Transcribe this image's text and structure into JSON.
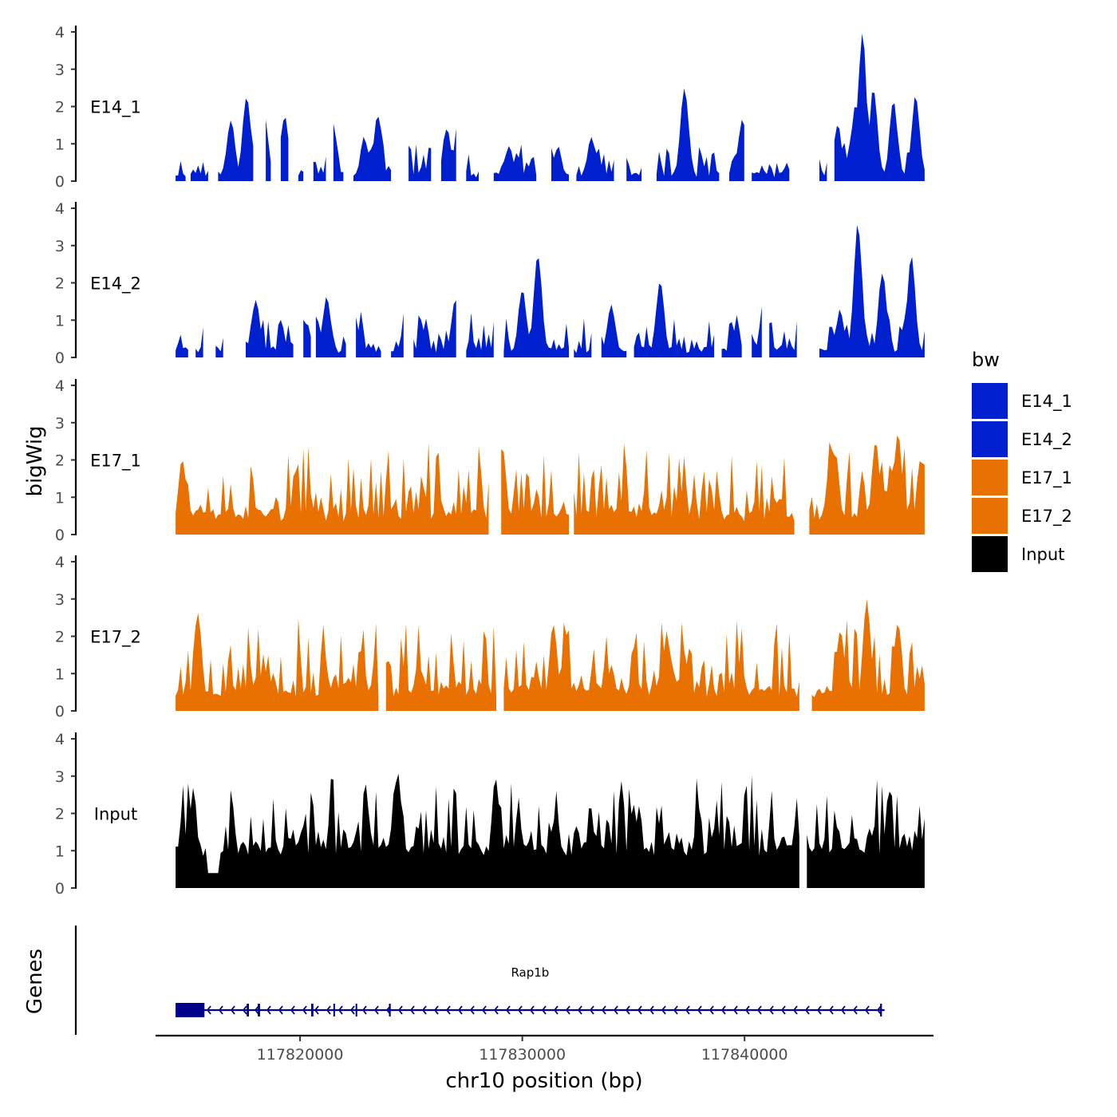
{
  "chart_data": {
    "type": "area",
    "chromosome": "chr10",
    "x_range": [
      117813500,
      117848500
    ],
    "xlabel": "chr10 position (bp)",
    "x_ticks": [
      117820000,
      117830000,
      117840000
    ],
    "x_tick_labels": [
      "117820000",
      "117830000",
      "117840000"
    ],
    "ylabel": "bigWig",
    "ylim": [
      0,
      4
    ],
    "y_ticks": [
      0,
      1,
      2,
      3,
      4
    ],
    "y_tick_labels": [
      "0",
      "1",
      "2",
      "3",
      "4"
    ],
    "data_start": 117814400,
    "data_end": 117848100,
    "n_bins": 300,
    "legend": {
      "title": "bw",
      "position": "right",
      "entries": [
        {
          "label": "E14_1",
          "color": "#0020cf"
        },
        {
          "label": "E14_2",
          "color": "#0020cf"
        },
        {
          "label": "E17_1",
          "color": "#e87102"
        },
        {
          "label": "E17_2",
          "color": "#e87102"
        },
        {
          "label": "Input",
          "color": "#000000"
        }
      ]
    },
    "series": [
      {
        "name": "E14_1",
        "color": "#0020cf",
        "baseline": 0.1,
        "noise": 0.4,
        "seed": 11,
        "gaps": [
          [
            117814900,
            117815000
          ],
          [
            117815900,
            117816300
          ],
          [
            117817900,
            117818400
          ],
          [
            117818700,
            117819100
          ],
          [
            117819500,
            117819900
          ],
          [
            117820200,
            117820500
          ],
          [
            117821200,
            117821500
          ],
          [
            117822000,
            117822300
          ],
          [
            117824100,
            117824800
          ],
          [
            117826000,
            117826300
          ],
          [
            117827100,
            117827400
          ],
          [
            117828100,
            117828700
          ],
          [
            117830700,
            117831300
          ],
          [
            117832100,
            117832400
          ],
          [
            117834200,
            117834600
          ],
          [
            117835400,
            117835600
          ],
          [
            117835700,
            117836000
          ],
          [
            117838900,
            117839200
          ],
          [
            117840000,
            117840300
          ],
          [
            117842100,
            117842700
          ],
          [
            117842900,
            117843300
          ],
          [
            117843800,
            117844000
          ]
        ],
        "peaks": [
          {
            "x": 117816900,
            "h": 1.6
          },
          {
            "x": 117817600,
            "h": 2.2
          },
          {
            "x": 117818400,
            "h": 1.6
          },
          {
            "x": 117819300,
            "h": 1.7
          },
          {
            "x": 117821500,
            "h": 1.4
          },
          {
            "x": 117822900,
            "h": 1.1
          },
          {
            "x": 117823500,
            "h": 1.7
          },
          {
            "x": 117826600,
            "h": 1.3
          },
          {
            "x": 117827100,
            "h": 1.4
          },
          {
            "x": 117829400,
            "h": 0.8
          },
          {
            "x": 117831600,
            "h": 0.8
          },
          {
            "x": 117833100,
            "h": 1.1
          },
          {
            "x": 117834400,
            "h": 0.9
          },
          {
            "x": 117837300,
            "h": 2.4
          },
          {
            "x": 117839900,
            "h": 1.6
          },
          {
            "x": 117842300,
            "h": 0.6
          },
          {
            "x": 117844200,
            "h": 1.4
          },
          {
            "x": 117845000,
            "h": 2.0
          },
          {
            "x": 117845300,
            "h": 3.9
          },
          {
            "x": 117845800,
            "h": 2.4
          },
          {
            "x": 117846700,
            "h": 2.1
          },
          {
            "x": 117847700,
            "h": 2.2
          }
        ]
      },
      {
        "name": "E14_2",
        "color": "#0020cf",
        "baseline": 0.12,
        "noise": 0.45,
        "seed": 23,
        "gaps": [
          [
            117815000,
            117815300
          ],
          [
            117815700,
            117816100
          ],
          [
            117816600,
            117816900
          ],
          [
            117817000,
            117817500
          ],
          [
            117819800,
            117820100
          ],
          [
            117820500,
            117820700
          ],
          [
            117822100,
            117822500
          ],
          [
            117823700,
            117824000
          ],
          [
            117824700,
            117825000
          ],
          [
            117827100,
            117827400
          ],
          [
            117828800,
            117829100
          ],
          [
            117832100,
            117832300
          ],
          [
            117833200,
            117833500
          ],
          [
            117834700,
            117835000
          ],
          [
            117838700,
            117838900
          ],
          [
            117839900,
            117840300
          ],
          [
            117840800,
            117841000
          ],
          [
            117842400,
            117843300
          ]
        ],
        "peaks": [
          {
            "x": 117818000,
            "h": 1.5
          },
          {
            "x": 117820300,
            "h": 0.8
          },
          {
            "x": 117821200,
            "h": 1.6
          },
          {
            "x": 117822400,
            "h": 1.3
          },
          {
            "x": 117824800,
            "h": 1.5
          },
          {
            "x": 117827000,
            "h": 1.5
          },
          {
            "x": 117830000,
            "h": 1.8
          },
          {
            "x": 117830700,
            "h": 2.7
          },
          {
            "x": 117834000,
            "h": 1.3
          },
          {
            "x": 117836200,
            "h": 1.9
          },
          {
            "x": 117840900,
            "h": 1.6
          },
          {
            "x": 117844300,
            "h": 1.2
          },
          {
            "x": 117845100,
            "h": 3.5
          },
          {
            "x": 117846200,
            "h": 2.2
          },
          {
            "x": 117847500,
            "h": 2.6
          }
        ]
      },
      {
        "name": "E17_1",
        "color": "#e87102",
        "baseline": 0.35,
        "noise": 0.9,
        "seed": 37,
        "gaps": [
          [
            117828600,
            117829000
          ],
          [
            117832100,
            117832300
          ],
          [
            117842300,
            117842900
          ]
        ],
        "peaks": [
          {
            "x": 117814700,
            "h": 2.0
          },
          {
            "x": 117829100,
            "h": 2.2
          },
          {
            "x": 117844100,
            "h": 2.1
          },
          {
            "x": 117845900,
            "h": 2.5
          },
          {
            "x": 117846900,
            "h": 2.6
          },
          {
            "x": 117848000,
            "h": 1.8
          }
        ]
      },
      {
        "name": "E17_2",
        "color": "#e87102",
        "baseline": 0.35,
        "noise": 0.95,
        "seed": 53,
        "gaps": [
          [
            117823600,
            117823800
          ],
          [
            117828900,
            117829100
          ],
          [
            117842500,
            117843000
          ]
        ],
        "peaks": [
          {
            "x": 117815400,
            "h": 2.6
          },
          {
            "x": 117831400,
            "h": 2.3
          },
          {
            "x": 117836500,
            "h": 2.0
          },
          {
            "x": 117845500,
            "h": 2.9
          },
          {
            "x": 117846900,
            "h": 2.3
          },
          {
            "x": 117844300,
            "h": 2.1
          }
        ]
      },
      {
        "name": "Input",
        "color": "#000000",
        "baseline": 0.85,
        "noise": 0.9,
        "seed": 71,
        "gaps": [
          [
            117842500,
            117842800
          ]
        ],
        "lows": [
          [
            117815800,
            117816400,
            0.4
          ]
        ],
        "peaks": [
          {
            "x": 117815200,
            "h": 2.6
          },
          {
            "x": 117824400,
            "h": 3.0
          },
          {
            "x": 117828800,
            "h": 2.9
          },
          {
            "x": 117846500,
            "h": 2.6
          },
          {
            "x": 117835000,
            "h": 2.2
          }
        ]
      }
    ],
    "gene_track": {
      "ylabel": "Genes",
      "gene": "Rap1b",
      "label": "Rap1b",
      "start": 117814400,
      "end": 117846300,
      "strand": "-",
      "color": "#00008b",
      "exons": [
        [
          117814400,
          117815700
        ],
        [
          117817600,
          117817700
        ],
        [
          117818100,
          117818200
        ],
        [
          117820500,
          117820600
        ],
        [
          117821500,
          117821550
        ],
        [
          117822500,
          117822550
        ],
        [
          117824000,
          117824080
        ],
        [
          117846100,
          117846180
        ]
      ]
    }
  }
}
